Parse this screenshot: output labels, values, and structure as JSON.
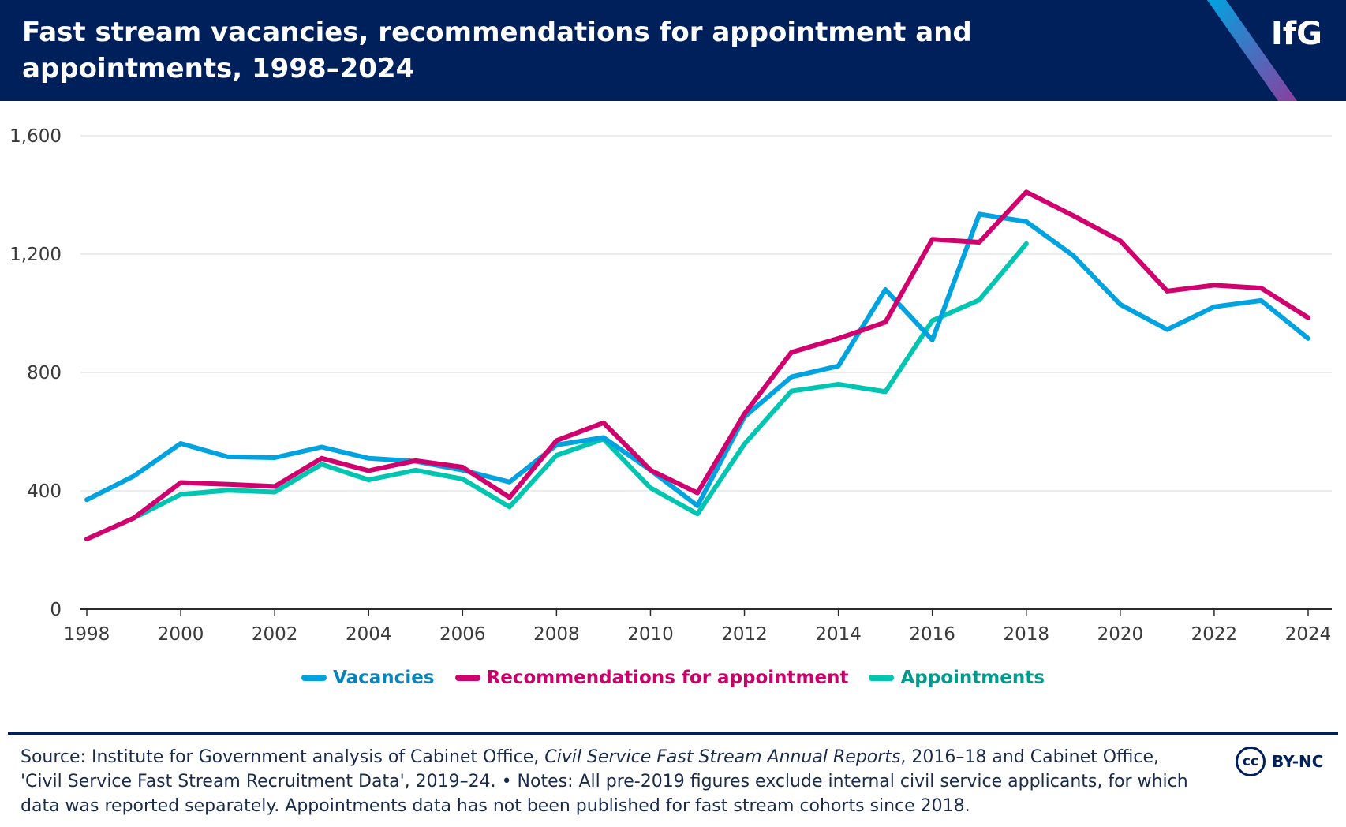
{
  "header": {
    "title": "Fast stream vacancies, recommendations for appointment and appointments, 1998–2024",
    "logo": "IfG"
  },
  "chart_data": {
    "type": "line",
    "title": "Fast stream vacancies, recommendations for appointment and appointments, 1998–2024",
    "xlabel": "",
    "ylabel": "",
    "x": [
      1998,
      1999,
      2000,
      2001,
      2002,
      2003,
      2004,
      2005,
      2006,
      2007,
      2008,
      2009,
      2010,
      2011,
      2012,
      2013,
      2014,
      2015,
      2016,
      2017,
      2018,
      2019,
      2020,
      2021,
      2022,
      2023,
      2024
    ],
    "xticks": [
      "1998",
      "2000",
      "2002",
      "2004",
      "2006",
      "2008",
      "2010",
      "2012",
      "2014",
      "2016",
      "2018",
      "2020",
      "2022",
      "2024"
    ],
    "yticks": [
      "0",
      "400",
      "800",
      "1,200",
      "1,600"
    ],
    "ylim": [
      0,
      1600
    ],
    "grid": true,
    "legend_position": "bottom",
    "series": [
      {
        "name": "Vacancies",
        "color": "#00a3e0",
        "values": [
          370,
          450,
          560,
          515,
          512,
          548,
          510,
          500,
          470,
          430,
          555,
          580,
          470,
          350,
          650,
          785,
          822,
          1080,
          910,
          1335,
          1310,
          1195,
          1030,
          945,
          1022,
          1043,
          915
        ]
      },
      {
        "name": "Recommendations for appointment",
        "color": "#d0006f",
        "values": [
          237,
          308,
          428,
          422,
          415,
          510,
          468,
          502,
          480,
          378,
          570,
          630,
          470,
          393,
          660,
          868,
          915,
          970,
          1250,
          1240,
          1410,
          1330,
          1245,
          1075,
          1095,
          1085,
          985
        ]
      },
      {
        "name": "Appointments",
        "color": "#00c5b0",
        "values": [
          null,
          308,
          388,
          402,
          396,
          490,
          437,
          470,
          440,
          346,
          520,
          575,
          410,
          322,
          558,
          737,
          760,
          735,
          975,
          1045,
          1235,
          null,
          null,
          null,
          null,
          null,
          null
        ]
      }
    ]
  },
  "footer": {
    "source_prefix": "Source: Institute for Government analysis of Cabinet Office, ",
    "source_italic": "Civil Service Fast Stream Annual Reports",
    "source_rest": ", 2016–18 and Cabinet Office, 'Civil Service Fast Stream Recruitment Data', 2019–24. • Notes: All pre-2019 figures exclude internal civil service applicants, for which data was reported separately. Appointments data has not been published for fast stream cohorts since 2018.",
    "license_symbol": "cc",
    "license": "BY-NC"
  }
}
